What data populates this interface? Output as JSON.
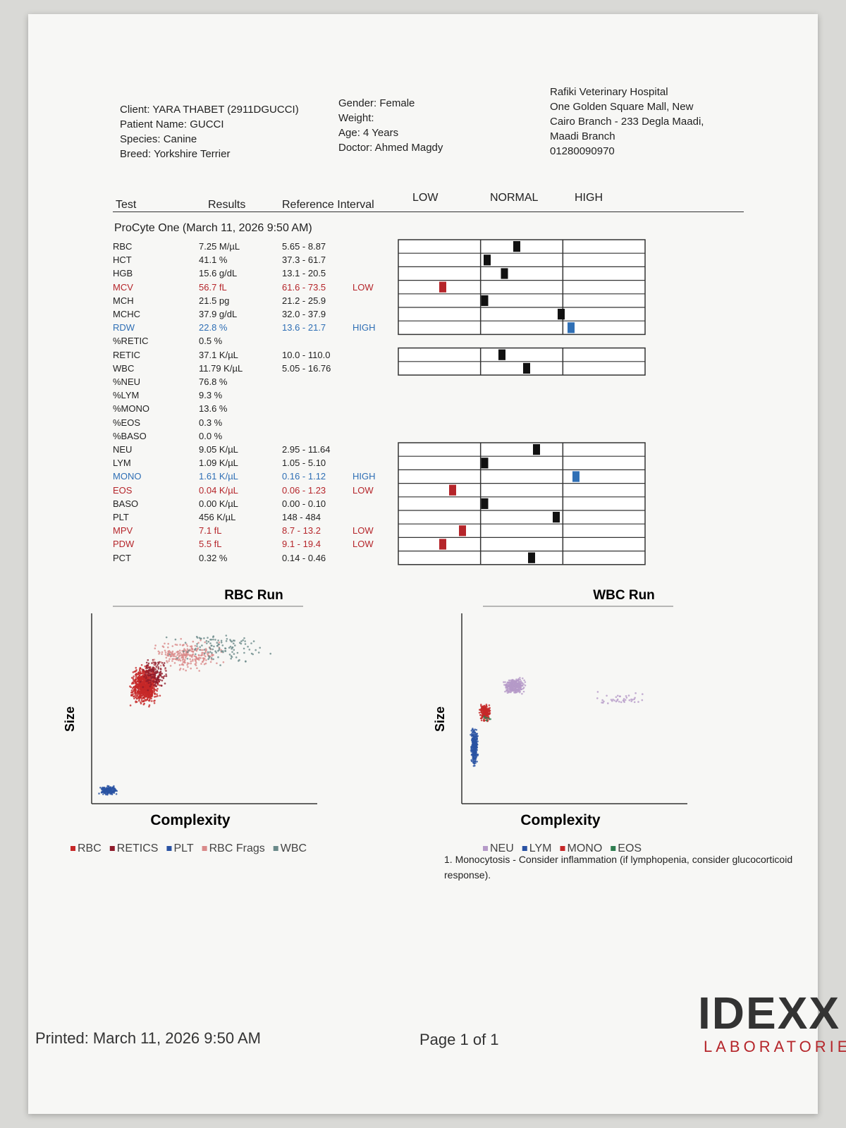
{
  "header": {
    "client": "Client: YARA THABET (2911DGUCCI)",
    "patient": "Patient Name: GUCCI",
    "species": "Species: Canine",
    "breed": "Breed: Yorkshire Terrier",
    "gender": "Gender: Female",
    "weight": "Weight:",
    "age": "Age: 4 Years",
    "doctor": "Doctor: Ahmed Magdy",
    "clinic": [
      "Rafiki Veterinary Hospital",
      "One Golden Square Mall, New",
      "Cairo Branch - 233 Degla Maadi,",
      "Maadi Branch",
      "01280090970"
    ]
  },
  "table": {
    "columns": [
      "Test",
      "Results",
      "Reference Interval",
      "LOW",
      "NORMAL",
      "HIGH"
    ],
    "run": "ProCyte One (March 11, 2026 9:50 AM)",
    "rows": [
      {
        "test": "RBC",
        "result": "7.25 M/µL",
        "reference": "5.65 - 8.87",
        "color": "#222222"
      },
      {
        "test": "HCT",
        "result": "41.1 %",
        "reference": "37.3 - 61.7",
        "color": "#222222"
      },
      {
        "test": "HGB",
        "result": "15.6 g/dL",
        "reference": "13.1 - 20.5",
        "color": "#222222"
      },
      {
        "test": "MCV",
        "result": "56.7 fL",
        "reference": "61.6 - 73.5",
        "flag": "LOW",
        "color": "#b5252a"
      },
      {
        "test": "MCH",
        "result": "21.5 pg",
        "reference": "21.2 - 25.9",
        "color": "#222222"
      },
      {
        "test": "MCHC",
        "result": "37.9 g/dL",
        "reference": "32.0 - 37.9",
        "color": "#222222"
      },
      {
        "test": "RDW",
        "result": "22.8 %",
        "reference": "13.6 - 21.7",
        "flag": "HIGH",
        "color": "#2f6fb5"
      },
      {
        "test": "%RETIC",
        "result": "0.5 %",
        "color": "#222222"
      },
      {
        "test": "RETIC",
        "result": "37.1 K/µL",
        "reference": "10.0 - 110.0",
        "color": "#222222"
      },
      {
        "test": "WBC",
        "result": "11.79 K/µL",
        "reference": "5.05 - 16.76",
        "color": "#222222"
      },
      {
        "test": "%NEU",
        "result": "76.8 %",
        "color": "#222222"
      },
      {
        "test": "%LYM",
        "result": "9.3 %",
        "color": "#222222"
      },
      {
        "test": "%MONO",
        "result": "13.6 %",
        "color": "#222222"
      },
      {
        "test": "%EOS",
        "result": "0.3 %",
        "color": "#222222"
      },
      {
        "test": "%BASO",
        "result": "0.0 %",
        "color": "#222222"
      },
      {
        "test": "NEU",
        "result": "9.05 K/µL",
        "reference": "2.95 - 11.64",
        "color": "#222222"
      },
      {
        "test": "LYM",
        "result": "1.09 K/µL",
        "reference": "1.05 - 5.10",
        "color": "#222222"
      },
      {
        "test": "MONO",
        "result": "1.61 K/µL",
        "reference": "0.16 - 1.12",
        "flag": "HIGH",
        "color": "#2f6fb5"
      },
      {
        "test": "EOS",
        "result": "0.04 K/µL",
        "reference": "0.06 - 1.23",
        "flag": "LOW",
        "color": "#b5252a"
      },
      {
        "test": "BASO",
        "result": "0.00 K/µL",
        "reference": "0.00 - 0.10",
        "color": "#222222"
      },
      {
        "test": "PLT",
        "result": "456 K/µL",
        "reference": "148 - 484",
        "color": "#222222"
      },
      {
        "test": "MPV",
        "result": "7.1 fL",
        "reference": "8.7 - 13.2",
        "flag": "LOW",
        "color": "#b5252a"
      },
      {
        "test": "PDW",
        "result": "5.5 fL",
        "reference": "9.1 - 19.4",
        "flag": "LOW",
        "color": "#b5252a"
      },
      {
        "test": "PCT",
        "result": "0.32 %",
        "reference": "0.14 - 0.46",
        "color": "#222222"
      }
    ]
  },
  "plots": [
    {
      "title": "RBC Run",
      "x_label": "Complexity",
      "y_label": "Size",
      "legend": [
        {
          "name": "RBC",
          "color": "#c62828"
        },
        {
          "name": "RETICS",
          "color": "#8e1b2a"
        },
        {
          "name": "PLT",
          "color": "#2952a3"
        },
        {
          "name": "RBC Frags",
          "color": "#d98a8a"
        },
        {
          "name": "WBC",
          "color": "#6a8a8a"
        }
      ]
    },
    {
      "title": "WBC Run",
      "x_label": "Complexity",
      "y_label": "Size",
      "legend": [
        {
          "name": "NEU",
          "color": "#b59ac8"
        },
        {
          "name": "LYM",
          "color": "#2952a3"
        },
        {
          "name": "MONO",
          "color": "#c62828"
        },
        {
          "name": "EOS",
          "color": "#2e7d4f"
        }
      ]
    }
  ],
  "note": "1. Monocytosis - Consider inflammation (if lymphopenia, consider glucocorticoid response).",
  "footer": {
    "printed": "Printed: March 11, 2026 9:50 AM",
    "page": "Page 1 of 1",
    "logo": "IDEXX",
    "logo_sub": "LABORATORIES"
  }
}
